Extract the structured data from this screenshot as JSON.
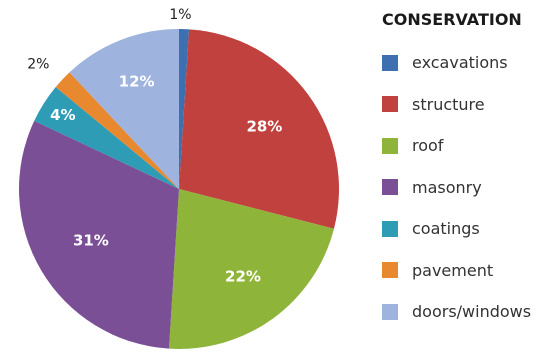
{
  "chart_data": {
    "type": "pie",
    "legend_title": "CONSERVATION",
    "legend_position": "right",
    "slices": [
      {
        "label": "excavations",
        "value": 1,
        "display": "1%",
        "color": "#3e6fb0"
      },
      {
        "label": "structure",
        "value": 28,
        "display": "28%",
        "color": "#c0413e"
      },
      {
        "label": "roof",
        "value": 22,
        "display": "22%",
        "color": "#8fb43a"
      },
      {
        "label": "masonry",
        "value": 31,
        "display": "31%",
        "color": "#7b4f96"
      },
      {
        "label": "coatings",
        "value": 4,
        "display": "4%",
        "color": "#2f9cb5"
      },
      {
        "label": "pavement",
        "value": 2,
        "display": "2%",
        "color": "#e8892f"
      },
      {
        "label": "doors/windows",
        "value": 12,
        "display": "12%",
        "color": "#9eb3dd"
      }
    ]
  }
}
